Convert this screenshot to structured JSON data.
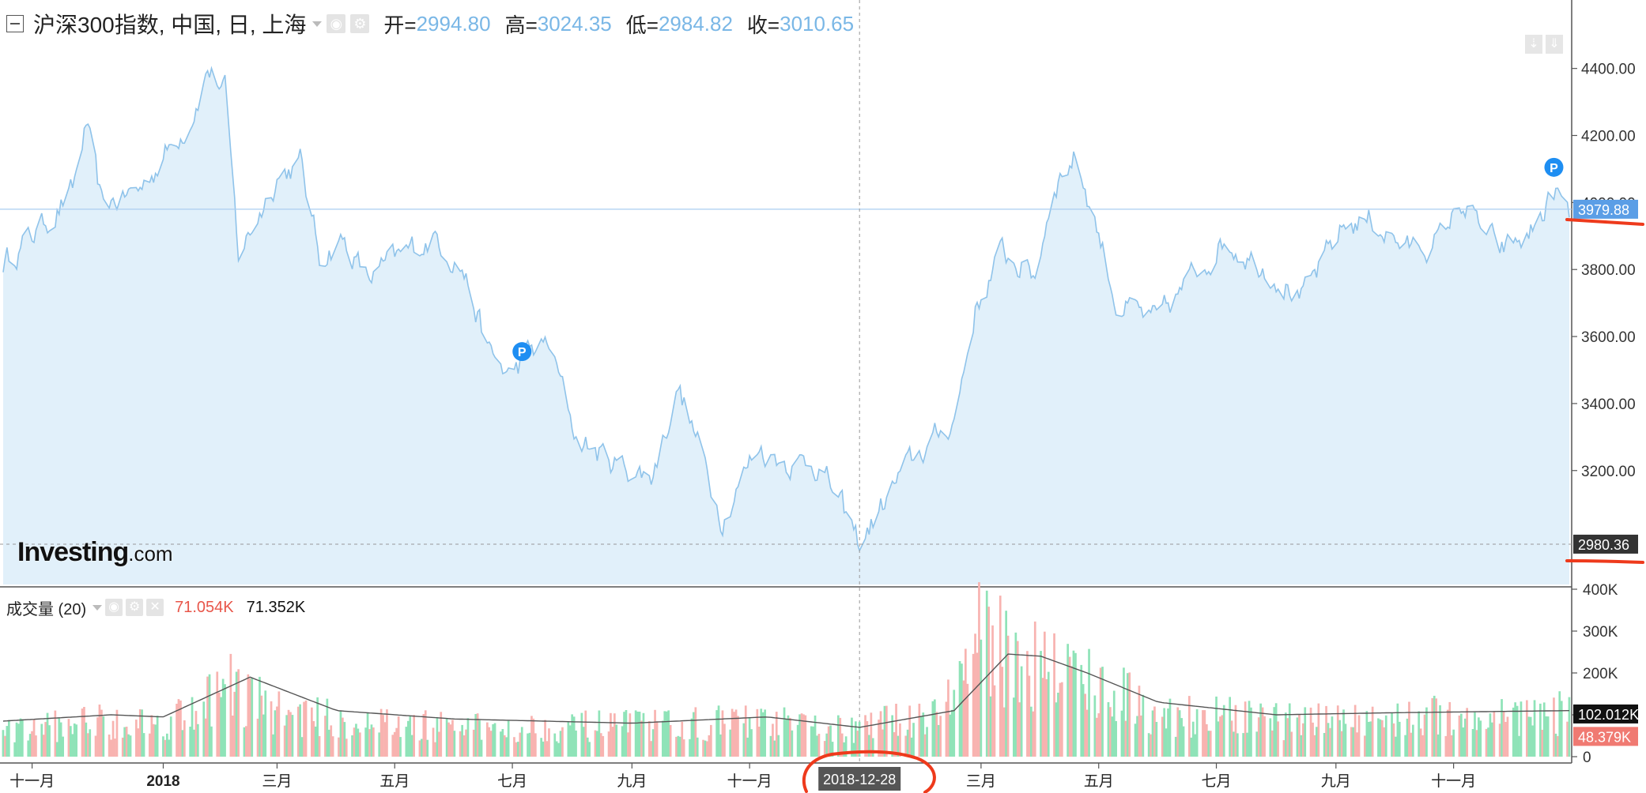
{
  "header": {
    "title": "沪深300指数, 中国, 日, 上海",
    "open_label": "开=",
    "open_value": "2994.80",
    "high_label": "高=",
    "high_value": "3024.35",
    "low_label": "低=",
    "low_value": "2984.82",
    "close_label": "收=",
    "close_value": "3010.65"
  },
  "volume_header": {
    "title": "成交量 (20)",
    "value1": "71.054K",
    "value2": "71.352K"
  },
  "logo": {
    "brand": "Investing",
    "suffix": ".com"
  },
  "colors": {
    "line": "#8fc3ea",
    "area": "#e1f0fa",
    "up_bar": "#8fe3b8",
    "down_bar": "#f8b3b0",
    "price_badge": "#5b9ee6",
    "annotation": "#ee3a1c"
  },
  "chart_data": {
    "type": "area",
    "price_axis": {
      "ticks": [
        3200,
        3400,
        3600,
        3800,
        4000,
        4200,
        4400
      ],
      "tick_labels": [
        "3200.00",
        "3400.00",
        "3600.00",
        "3800.00",
        "4000.00",
        "4200.00",
        "4400.00"
      ],
      "range": [
        2860,
        4510
      ]
    },
    "price_keypoints": [
      [
        "2017-10-10",
        3820
      ],
      [
        "2017-10-25",
        3900
      ],
      [
        "2017-11-15",
        4030
      ],
      [
        "2017-11-22",
        4230
      ],
      [
        "2017-11-30",
        3990
      ],
      [
        "2017-12-20",
        4040
      ],
      [
        "2018-01-15",
        4250
      ],
      [
        "2018-01-24",
        4400
      ],
      [
        "2018-02-02",
        4330
      ],
      [
        "2018-02-09",
        3840
      ],
      [
        "2018-03-01",
        4080
      ],
      [
        "2018-03-13",
        4120
      ],
      [
        "2018-03-23",
        3840
      ],
      [
        "2018-04-04",
        3890
      ],
      [
        "2018-04-17",
        3770
      ],
      [
        "2018-05-10",
        3860
      ],
      [
        "2018-05-22",
        3900
      ],
      [
        "2018-06-05",
        3810
      ],
      [
        "2018-06-19",
        3550
      ],
      [
        "2018-06-29",
        3480
      ],
      [
        "2018-07-10",
        3550
      ],
      [
        "2018-07-20",
        3580
      ],
      [
        "2018-08-03",
        3300
      ],
      [
        "2018-08-20",
        3230
      ],
      [
        "2018-09-11",
        3180
      ],
      [
        "2018-09-25",
        3450
      ],
      [
        "2018-10-18",
        3060
      ],
      [
        "2018-11-05",
        3270
      ],
      [
        "2018-11-20",
        3230
      ],
      [
        "2018-12-07",
        3220
      ],
      [
        "2018-12-28",
        2980
      ],
      [
        "2019-01-20",
        3200
      ],
      [
        "2019-02-15",
        3350
      ],
      [
        "2019-02-26",
        3680
      ],
      [
        "2019-03-12",
        3850
      ],
      [
        "2019-03-29",
        3780
      ],
      [
        "2019-04-08",
        4060
      ],
      [
        "2019-04-19",
        4140
      ],
      [
        "2019-04-30",
        3930
      ],
      [
        "2019-05-10",
        3700
      ],
      [
        "2019-05-31",
        3640
      ],
      [
        "2019-06-20",
        3790
      ],
      [
        "2019-07-05",
        3890
      ],
      [
        "2019-07-31",
        3790
      ],
      [
        "2019-08-15",
        3710
      ],
      [
        "2019-09-05",
        3930
      ],
      [
        "2019-09-19",
        3950
      ],
      [
        "2019-10-08",
        3860
      ],
      [
        "2019-10-25",
        3890
      ],
      [
        "2019-11-05",
        4000
      ],
      [
        "2019-11-25",
        3850
      ],
      [
        "2019-12-10",
        3900
      ],
      [
        "2019-12-24",
        4030
      ],
      [
        "2019-12-31",
        3950
      ]
    ],
    "time_axis": {
      "start": "2017-10-10",
      "end": "2019-12-31",
      "labels": [
        {
          "date": "2017-10-25",
          "text": "十一月"
        },
        {
          "date": "2018-01-01",
          "text": "2018",
          "bold": true
        },
        {
          "date": "2018-03-01",
          "text": "三月"
        },
        {
          "date": "2018-05-01",
          "text": "五月"
        },
        {
          "date": "2018-07-01",
          "text": "七月"
        },
        {
          "date": "2018-09-01",
          "text": "九月"
        },
        {
          "date": "2018-11-01",
          "text": "十一月"
        },
        {
          "date": "2019-03-01",
          "text": "三月"
        },
        {
          "date": "2019-05-01",
          "text": "五月"
        },
        {
          "date": "2019-07-01",
          "text": "七月"
        },
        {
          "date": "2019-09-01",
          "text": "九月"
        },
        {
          "date": "2019-11-01",
          "text": "十一月"
        }
      ]
    },
    "crosshair": {
      "date": "2018-12-28",
      "label": "2018-12-28",
      "price": 2980.36,
      "price_label": "2980.36"
    },
    "last_price": {
      "value": 3979.88,
      "label": "3979.88"
    },
    "pin_markers": [
      {
        "date": "2018-07-06",
        "price": 3555,
        "label": "P"
      },
      {
        "date": "2019-12-23",
        "price": 4105,
        "label": "P"
      }
    ],
    "volume_axis": {
      "ticks": [
        0,
        100000,
        200000,
        300000,
        400000
      ],
      "tick_labels": [
        "0",
        "",
        "200K",
        "300K",
        "400K"
      ],
      "range": [
        0,
        400000
      ]
    },
    "volume_keypoints": [
      [
        "2017-10-10",
        60000
      ],
      [
        "2017-12-01",
        90000
      ],
      [
        "2018-01-01",
        80000
      ],
      [
        "2018-02-05",
        170000
      ],
      [
        "2018-03-01",
        110000
      ],
      [
        "2018-04-15",
        80000
      ],
      [
        "2018-06-15",
        70000
      ],
      [
        "2018-09-01",
        75000
      ],
      [
        "2018-11-01",
        85000
      ],
      [
        "2018-12-28",
        65000
      ],
      [
        "2019-02-10",
        120000
      ],
      [
        "2019-03-01",
        290000
      ],
      [
        "2019-03-20",
        240000
      ],
      [
        "2019-04-20",
        200000
      ],
      [
        "2019-06-01",
        105000
      ],
      [
        "2019-08-15",
        85000
      ],
      [
        "2019-10-01",
        95000
      ],
      [
        "2019-12-31",
        105000
      ]
    ],
    "volume_ma_keypoints": [
      [
        "2017-10-10",
        85000
      ],
      [
        "2017-12-05",
        100000
      ],
      [
        "2018-01-01",
        95000
      ],
      [
        "2018-02-15",
        190000
      ],
      [
        "2018-04-01",
        110000
      ],
      [
        "2018-06-01",
        90000
      ],
      [
        "2018-09-01",
        80000
      ],
      [
        "2018-11-10",
        95000
      ],
      [
        "2018-12-28",
        70000
      ],
      [
        "2019-02-15",
        110000
      ],
      [
        "2019-03-15",
        245000
      ],
      [
        "2019-04-01",
        240000
      ],
      [
        "2019-04-25",
        200000
      ],
      [
        "2019-06-01",
        130000
      ],
      [
        "2019-08-01",
        100000
      ],
      [
        "2019-10-01",
        105000
      ],
      [
        "2019-12-31",
        110000
      ]
    ],
    "volume_last": {
      "label1": "102.012K",
      "label2": "48.379K"
    }
  }
}
